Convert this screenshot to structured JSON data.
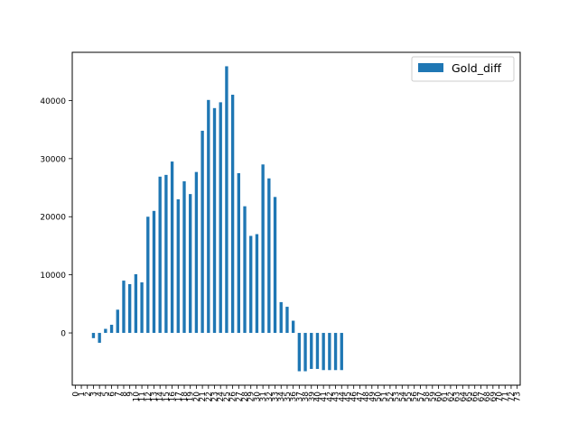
{
  "chart_data": {
    "type": "bar",
    "title": "",
    "xlabel": "",
    "ylabel": "",
    "x": [
      0,
      1,
      2,
      3,
      4,
      5,
      6,
      7,
      8,
      9,
      10,
      11,
      12,
      13,
      14,
      15,
      16,
      17,
      18,
      19,
      20,
      21,
      22,
      23,
      24,
      25,
      26,
      27,
      28,
      29,
      30,
      31,
      32,
      33,
      34,
      35,
      36,
      37,
      38,
      39,
      40,
      41,
      42,
      43,
      44,
      45,
      46,
      47,
      48,
      49,
      50,
      51,
      52,
      53,
      54,
      55,
      56,
      57,
      58,
      59,
      60,
      61,
      62,
      63,
      64,
      65,
      66,
      67,
      68,
      69,
      70,
      71,
      72,
      73
    ],
    "x_tick_labels": [
      "0",
      "1",
      "2",
      "3",
      "4",
      "5",
      "6",
      "7",
      "8",
      "9",
      "10",
      "11",
      "12",
      "13",
      "14",
      "15",
      "16",
      "17",
      "18",
      "19",
      "20",
      "21",
      "22",
      "23",
      "24",
      "25",
      "26",
      "27",
      "28",
      "29",
      "30",
      "31",
      "32",
      "33",
      "34",
      "35",
      "36",
      "37",
      "38",
      "39",
      "40",
      "41",
      "42",
      "43",
      "44",
      "45",
      "46",
      "47",
      "48",
      "49",
      "50",
      "51",
      "52",
      "53",
      "54",
      "55",
      "56",
      "57",
      "58",
      "59",
      "60",
      "61",
      "62",
      "63",
      "64",
      "65",
      "66",
      "67",
      "68",
      "69",
      "70",
      "71",
      "72",
      "73"
    ],
    "series": [
      {
        "name": "Gold_diff",
        "color": "#1f77b4",
        "values": [
          0,
          0,
          0,
          -900,
          -1700,
          700,
          1400,
          4000,
          9000,
          8400,
          10100,
          8700,
          20000,
          21000,
          26900,
          27200,
          29500,
          23000,
          26100,
          23900,
          27700,
          34800,
          40100,
          38700,
          39700,
          45900,
          41000,
          27500,
          21800,
          16700,
          17000,
          29000,
          26600,
          23400,
          5300,
          4500,
          2100,
          -6600,
          -6600,
          -6200,
          -6200,
          -6400,
          -6400,
          -6400,
          -6400,
          0,
          0,
          0,
          0,
          0,
          0,
          0,
          0,
          0,
          0,
          0,
          0,
          0,
          0,
          0,
          0,
          0,
          0,
          0,
          0,
          0,
          0,
          0,
          0,
          0,
          0,
          0,
          0,
          0
        ]
      }
    ],
    "y_ticks": [
      0,
      10000,
      20000,
      30000,
      40000
    ],
    "y_tick_labels": [
      "0",
      "10000",
      "20000",
      "30000",
      "40000"
    ],
    "ylim": [
      -9000,
      48300
    ],
    "xlim": [
      -0.5,
      73.5
    ],
    "grid": false,
    "legend": {
      "position": "top-right",
      "entries": [
        "Gold_diff"
      ]
    }
  }
}
